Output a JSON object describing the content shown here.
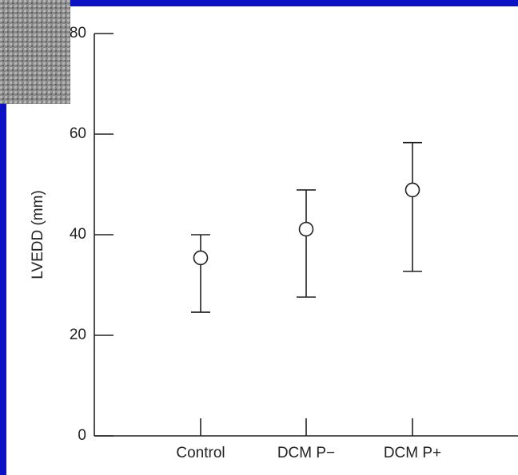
{
  "chart_data": {
    "type": "errorbar",
    "y_label": "LVEDD (mm)",
    "categories": [
      "Control",
      "DCM P−",
      "DCM P+"
    ],
    "values": [
      35.4,
      41.1,
      48.9
    ],
    "low": [
      24.6,
      27.6,
      32.7
    ],
    "high": [
      40,
      48.9,
      58.3
    ],
    "color": "#222222",
    "ylim": [
      0,
      80
    ],
    "yticks": [
      0,
      20,
      40,
      60,
      80
    ]
  }
}
